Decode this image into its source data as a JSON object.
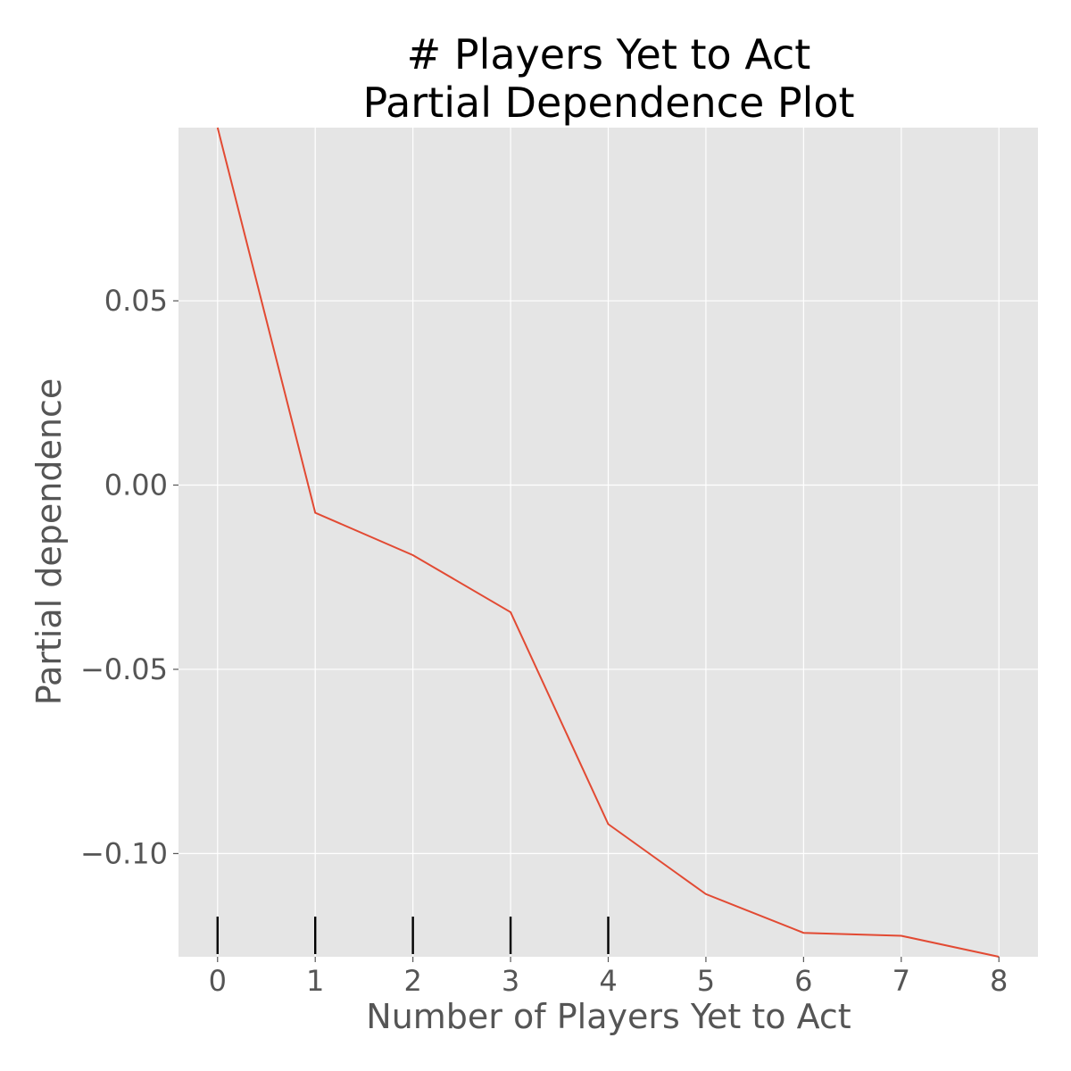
{
  "chart_data": {
    "type": "line",
    "title_lines": [
      "# Players Yet to Act",
      "Partial Dependence Plot"
    ],
    "xlabel": "Number of Players Yet to Act",
    "ylabel": "Partial dependence",
    "x": [
      0,
      1,
      2,
      3,
      4,
      5,
      6,
      7,
      8
    ],
    "y": [
      0.097,
      -0.0075,
      -0.019,
      -0.0345,
      -0.092,
      -0.111,
      -0.1215,
      -0.1223,
      -0.128
    ],
    "xlim": [
      -0.4,
      8.4
    ],
    "ylim": [
      -0.128,
      0.097
    ],
    "xticks": [
      0,
      1,
      2,
      3,
      4,
      5,
      6,
      7,
      8
    ],
    "xtick_labels": [
      "0",
      "1",
      "2",
      "3",
      "4",
      "5",
      "6",
      "7",
      "8"
    ],
    "yticks": [
      0.05,
      0.0,
      -0.05,
      -0.1
    ],
    "ytick_labels": [
      "0.05",
      "0.00",
      "−0.05",
      "−0.10"
    ],
    "rug_x": [
      0,
      1,
      2,
      3,
      4
    ],
    "grid": true,
    "colors": {
      "line": "#E24A33",
      "plot_background": "#E5E5E5",
      "grid": "#FFFFFF",
      "rug": "#000000"
    }
  }
}
